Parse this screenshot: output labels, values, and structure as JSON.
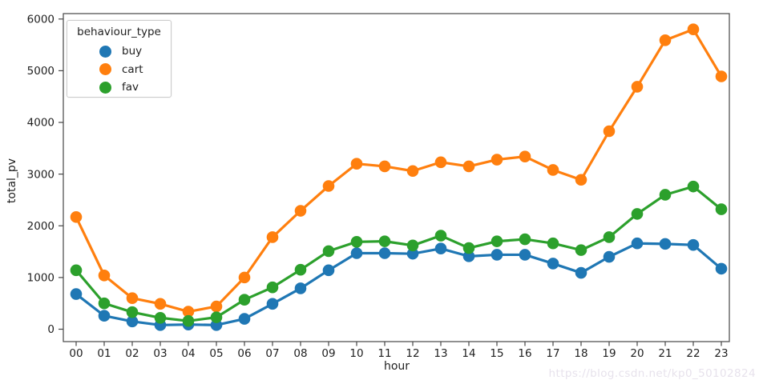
{
  "watermark": "https://blog.csdn.net/kp0_50102824",
  "colors": {
    "spine": "#454545",
    "text": "#1f1f1f",
    "legend_border": "#cccccc",
    "watermark": "#e7e2ec",
    "buy": "#1f77b4",
    "cart": "#ff7f0e",
    "fav": "#2ca02c"
  },
  "chart_data": {
    "type": "line",
    "title": "",
    "xlabel": "hour",
    "ylabel": "total_pv",
    "legend_title": "behaviour_type",
    "legend_position": "upper left",
    "grid": false,
    "categories": [
      "00",
      "01",
      "02",
      "03",
      "04",
      "05",
      "06",
      "07",
      "08",
      "09",
      "10",
      "11",
      "12",
      "13",
      "14",
      "15",
      "16",
      "17",
      "18",
      "19",
      "20",
      "21",
      "22",
      "23"
    ],
    "yticks": [
      0,
      1000,
      2000,
      3000,
      4000,
      5000,
      6000
    ],
    "ylim": [
      -240,
      6105
    ],
    "series": [
      {
        "name": "buy",
        "color": "#1f77b4",
        "values": [
          680,
          260,
          150,
          80,
          90,
          80,
          200,
          490,
          790,
          1140,
          1470,
          1470,
          1460,
          1560,
          1410,
          1440,
          1440,
          1270,
          1090,
          1400,
          1660,
          1650,
          1630,
          1170
        ]
      },
      {
        "name": "cart",
        "color": "#ff7f0e",
        "values": [
          2170,
          1040,
          600,
          490,
          340,
          440,
          1000,
          1780,
          2290,
          2770,
          3200,
          3150,
          3060,
          3230,
          3150,
          3280,
          3340,
          3080,
          2890,
          3830,
          4690,
          5590,
          5800,
          4890
        ]
      },
      {
        "name": "fav",
        "color": "#2ca02c",
        "values": [
          1140,
          500,
          330,
          220,
          160,
          230,
          570,
          810,
          1150,
          1510,
          1690,
          1700,
          1620,
          1810,
          1570,
          1700,
          1740,
          1660,
          1530,
          1780,
          2230,
          2600,
          2760,
          2320
        ]
      }
    ]
  }
}
